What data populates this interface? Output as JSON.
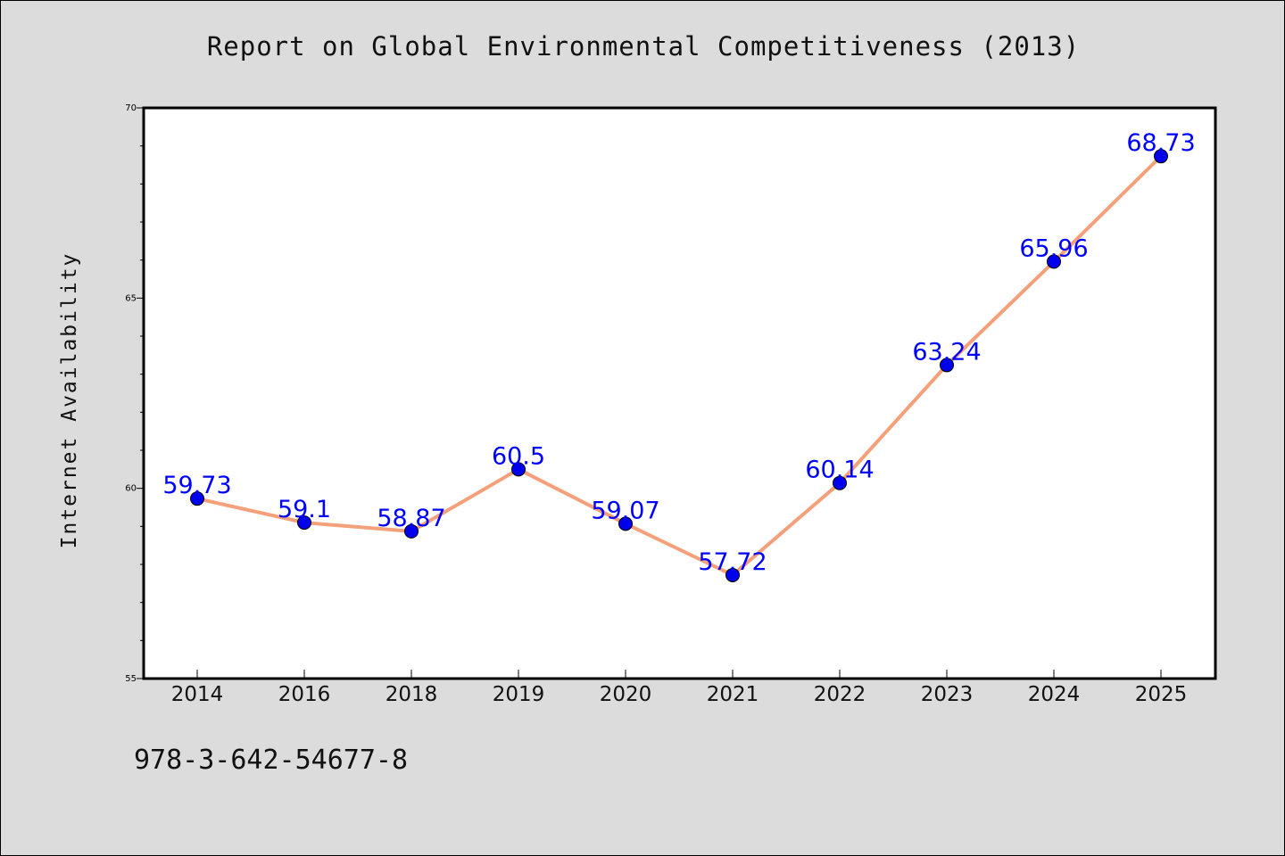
{
  "chart_data": {
    "type": "line",
    "title": "Report on Global Environmental Competitiveness (2013)",
    "xlabel": "",
    "ylabel": "Internet Availability",
    "categories": [
      "2014",
      "2016",
      "2018",
      "2019",
      "2020",
      "2021",
      "2022",
      "2023",
      "2024",
      "2025"
    ],
    "series": [
      {
        "values": [
          59.73,
          59.1,
          58.87,
          60.5,
          59.07,
          57.72,
          60.14,
          63.24,
          65.96,
          68.73
        ],
        "labels": [
          "59.73",
          "59.1",
          "58.87",
          "60.5",
          "59.07",
          "57.72",
          "60.14",
          "63.24",
          "65.96",
          "68.73"
        ]
      }
    ],
    "ylim": [
      55,
      70
    ],
    "yticks": [
      "55",
      "60",
      "65",
      "70"
    ],
    "grid": false,
    "colors": {
      "line": "#f4a07a",
      "marker": "#0000ee",
      "data_label": "#0000ff",
      "plot_background": "#ffffff",
      "page_background": "#dcdcdc"
    }
  },
  "footer": {
    "isbn": "978-3-642-54677-8"
  }
}
